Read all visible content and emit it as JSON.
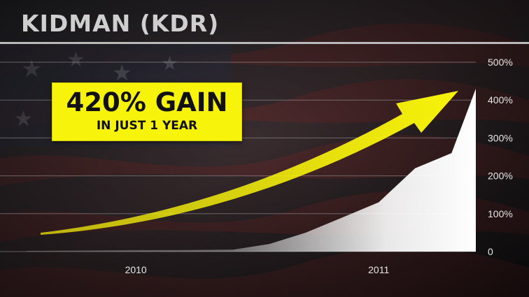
{
  "title": "KIDMAN (KDR)",
  "callout": {
    "main": "420% GAIN",
    "sub": "IN JUST 1 YEAR"
  },
  "colors": {
    "accent": "#f8f30a",
    "area": "#ffffff"
  },
  "chart_data": {
    "type": "area",
    "x": [
      2009.55,
      2009.8,
      2010.0,
      2010.2,
      2010.4,
      2010.55,
      2010.7,
      2010.85,
      2011.0,
      2011.15,
      2011.3,
      2011.4
    ],
    "series": [
      {
        "values": [
          2,
          3,
          4,
          4,
          5,
          20,
          50,
          90,
          130,
          220,
          260,
          430
        ]
      }
    ],
    "x_tick_labels": [
      "2010",
      "2011"
    ],
    "x_ticks": [
      2010,
      2011
    ],
    "y_tick_labels": [
      "0",
      "100%",
      "200%",
      "300%",
      "400%",
      "500%"
    ],
    "y_ticks": [
      0,
      100,
      200,
      300,
      400,
      500
    ],
    "ylim": [
      0,
      500
    ],
    "xlim": [
      2009.55,
      2011.4
    ],
    "grid": true
  }
}
